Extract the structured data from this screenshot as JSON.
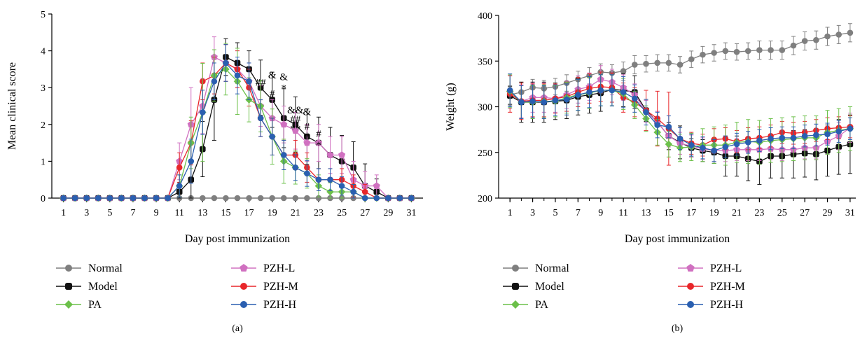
{
  "chart_data": [
    {
      "type": "line",
      "panel_label": "(a)",
      "xlabel": "Day post immunization",
      "ylabel": "Mean clinical score",
      "xlim": [
        0,
        32
      ],
      "ylim": [
        0,
        5
      ],
      "xticks": [
        "1",
        "3",
        "5",
        "7",
        "9",
        "11",
        "13",
        "15",
        "17",
        "19",
        "21",
        "23",
        "25",
        "27",
        "29",
        "31"
      ],
      "yticks": [
        "0",
        "1",
        "2",
        "3",
        "4",
        "5"
      ],
      "error_bars": true,
      "legend_position": "bottom",
      "x": [
        1,
        2,
        3,
        4,
        5,
        6,
        7,
        8,
        9,
        10,
        11,
        12,
        13,
        14,
        15,
        16,
        17,
        18,
        19,
        20,
        21,
        22,
        23,
        24,
        25,
        26,
        27,
        28,
        29,
        30,
        31
      ],
      "series": [
        {
          "name": "Normal",
          "color": "#7f7f7f",
          "marker": "circle",
          "values": [
            0,
            0,
            0,
            0,
            0,
            0,
            0,
            0,
            0,
            0,
            0,
            0,
            0,
            0,
            0,
            0,
            0,
            0,
            0,
            0,
            0,
            0,
            0,
            0,
            0,
            0,
            0,
            0,
            0,
            0,
            0
          ],
          "errors": [
            0,
            0,
            0,
            0,
            0,
            0,
            0,
            0,
            0,
            0,
            0,
            0,
            0,
            0,
            0,
            0,
            0,
            0,
            0,
            0,
            0,
            0,
            0,
            0,
            0,
            0,
            0,
            0,
            0,
            0,
            0
          ]
        },
        {
          "name": "Model",
          "color": "#111111",
          "marker": "square",
          "values": [
            0,
            0,
            0,
            0,
            0,
            0,
            0,
            0,
            0,
            0,
            0.17,
            0.5,
            1.33,
            2.67,
            3.83,
            3.67,
            3.5,
            3,
            2.67,
            2.17,
            2,
            1.67,
            1.5,
            1.17,
            1,
            0.83,
            0.33,
            0.17,
            0,
            0,
            0
          ],
          "errors": [
            0,
            0,
            0,
            0,
            0,
            0,
            0,
            0,
            0,
            0,
            0.25,
            0.5,
            0.75,
            1.1,
            0.5,
            0.55,
            0.5,
            0.75,
            0.75,
            0.8,
            0.75,
            0.75,
            0.7,
            0.75,
            0.7,
            0.7,
            0.6,
            0.35,
            0,
            0,
            0
          ]
        },
        {
          "name": "PZH-L",
          "color": "#d070c0",
          "marker": "pentagon",
          "values": [
            0,
            0,
            0,
            0,
            0,
            0,
            0,
            0,
            0,
            0,
            1,
            2,
            2.5,
            3.83,
            3.67,
            3.5,
            3.17,
            2.5,
            2.17,
            2,
            1.83,
            1.5,
            1.5,
            1.17,
            1.17,
            0.5,
            0.33,
            0.33,
            0,
            0,
            0
          ],
          "errors": [
            0,
            0,
            0,
            0,
            0,
            0,
            0,
            0,
            0,
            0,
            0.5,
            1,
            0.75,
            0.55,
            0.5,
            0.5,
            0.5,
            0.55,
            0.5,
            0.5,
            0.5,
            0.5,
            0.5,
            0.5,
            0.5,
            0.5,
            0.4,
            0.3,
            0,
            0,
            0
          ]
        },
        {
          "name": "PZH-M",
          "color": "#e8262a",
          "marker": "circle",
          "values": [
            0,
            0,
            0,
            0,
            0,
            0,
            0,
            0,
            0,
            0,
            0.83,
            1.5,
            3.17,
            3.33,
            3.67,
            3.5,
            3,
            2.17,
            1.67,
            1.17,
            1.17,
            0.83,
            0.5,
            0.5,
            0.5,
            0.33,
            0.17,
            0,
            0,
            0,
            0
          ],
          "errors": [
            0,
            0,
            0,
            0,
            0,
            0,
            0,
            0,
            0,
            0,
            0.4,
            0.6,
            0.5,
            0.5,
            0.5,
            0.5,
            0.5,
            0.5,
            0.5,
            0.4,
            0.4,
            0.4,
            0.3,
            0.3,
            0.3,
            0.3,
            0.2,
            0,
            0,
            0,
            0
          ]
        },
        {
          "name": "PA",
          "color": "#6cc04a",
          "marker": "diamond",
          "values": [
            0,
            0,
            0,
            0,
            0,
            0,
            0,
            0,
            0,
            0,
            0.33,
            1.5,
            2.33,
            3.33,
            3.5,
            3.17,
            2.67,
            2.5,
            1.67,
            1,
            0.83,
            0.67,
            0.33,
            0.17,
            0.17,
            0.17,
            0,
            0,
            0,
            0,
            0
          ],
          "errors": [
            0,
            0,
            0,
            0,
            0,
            0,
            0,
            0,
            0,
            0,
            0.3,
            0.7,
            1.33,
            0.7,
            0.7,
            0.9,
            0.6,
            0.7,
            0.75,
            0.6,
            0.45,
            0.4,
            0.3,
            0.25,
            0.2,
            0.2,
            0,
            0,
            0,
            0,
            0
          ]
        },
        {
          "name": "PZH-H",
          "color": "#2a5fb0",
          "marker": "circle",
          "values": [
            0,
            0,
            0,
            0,
            0,
            0,
            0,
            0,
            0,
            0,
            0.33,
            1,
            2.33,
            3.17,
            3.67,
            3.33,
            3.17,
            2.17,
            1.67,
            1.17,
            0.83,
            0.67,
            0.5,
            0.5,
            0.33,
            0.17,
            0,
            0,
            0,
            0,
            0
          ],
          "errors": [
            0,
            0,
            0,
            0,
            0,
            0,
            0,
            0,
            0,
            0,
            0.3,
            0.6,
            0.6,
            0.5,
            0.5,
            0.5,
            0.5,
            0.5,
            0.5,
            0.4,
            0.35,
            0.35,
            0.3,
            0.3,
            0.25,
            0.2,
            0,
            0,
            0,
            0,
            0
          ]
        }
      ],
      "annotations": [
        {
          "text": "##",
          "x": 18,
          "y": 3.05
        },
        {
          "text": "&",
          "x": 19,
          "y": 3.25
        },
        {
          "text": "#",
          "x": 19,
          "y": 2.75
        },
        {
          "text": "&",
          "x": 20,
          "y": 3.2
        },
        {
          "text": "*",
          "x": 20,
          "y": 2.9
        },
        {
          "text": "&&",
          "x": 21,
          "y": 2.3
        },
        {
          "text": "##",
          "x": 21,
          "y": 2.05
        },
        {
          "text": "**",
          "x": 21,
          "y": 1.8
        },
        {
          "text": "&",
          "x": 22,
          "y": 2.25
        },
        {
          "text": "#",
          "x": 22,
          "y": 1.85
        },
        {
          "text": "*",
          "x": 22,
          "y": 1.6
        },
        {
          "text": "#",
          "x": 23,
          "y": 1.65
        },
        {
          "text": "*",
          "x": 23,
          "y": 1.35
        }
      ]
    },
    {
      "type": "line",
      "panel_label": "(b)",
      "xlabel": "Day post immunization",
      "ylabel": "Weight (g)",
      "xlim": [
        0,
        31.5
      ],
      "ylim": [
        200,
        400
      ],
      "xticks": [
        "1",
        "3",
        "5",
        "7",
        "9",
        "11",
        "13",
        "15",
        "17",
        "19",
        "21",
        "23",
        "25",
        "27",
        "29",
        "31"
      ],
      "yticks": [
        "200",
        "250",
        "300",
        "350",
        "400"
      ],
      "error_bars": true,
      "legend_position": "bottom",
      "x": [
        1,
        2,
        3,
        4,
        5,
        6,
        7,
        8,
        9,
        10,
        11,
        12,
        13,
        14,
        15,
        16,
        17,
        18,
        19,
        20,
        21,
        22,
        23,
        24,
        25,
        26,
        27,
        28,
        29,
        30,
        31
      ],
      "series": [
        {
          "name": "Normal",
          "color": "#7f7f7f",
          "marker": "circle",
          "values": [
            313,
            316,
            321,
            320,
            322,
            326,
            330,
            334,
            338,
            337,
            339,
            346,
            347,
            348,
            348,
            346,
            352,
            357,
            359,
            361,
            360,
            361,
            362,
            362,
            362,
            367,
            372,
            373,
            377,
            379,
            381
          ],
          "errors": [
            10,
            10,
            9,
            9,
            9,
            9,
            9,
            9,
            9,
            9,
            10,
            10,
            9,
            9,
            9,
            9,
            9,
            9,
            9,
            9,
            9,
            9,
            10,
            10,
            10,
            10,
            10,
            10,
            10,
            10,
            10
          ]
        },
        {
          "name": "Model",
          "color": "#111111",
          "marker": "square",
          "values": [
            312,
            305,
            305,
            305,
            306,
            307,
            311,
            313,
            315,
            319,
            318,
            316,
            296,
            283,
            268,
            261,
            255,
            252,
            250,
            246,
            246,
            243,
            240,
            246,
            246,
            248,
            249,
            248,
            252,
            256,
            259
          ],
          "errors": [
            10,
            22,
            22,
            22,
            20,
            20,
            20,
            20,
            20,
            18,
            18,
            18,
            12,
            12,
            15,
            18,
            10,
            12,
            12,
            22,
            22,
            24,
            25,
            24,
            24,
            26,
            26,
            28,
            28,
            30,
            32
          ]
        },
        {
          "name": "PZH-L",
          "color": "#d070c0",
          "marker": "pentagon",
          "values": [
            316,
            306,
            310,
            310,
            309,
            313,
            319,
            322,
            330,
            327,
            321,
            313,
            295,
            283,
            268,
            260,
            257,
            254,
            252,
            252,
            253,
            253,
            253,
            254,
            253,
            253,
            255,
            255,
            262,
            268,
            277
          ],
          "errors": [
            18,
            18,
            16,
            16,
            15,
            15,
            15,
            15,
            15,
            14,
            14,
            12,
            12,
            12,
            12,
            12,
            12,
            12,
            12,
            12,
            12,
            12,
            12,
            12,
            12,
            12,
            12,
            12,
            14,
            15,
            16
          ]
        },
        {
          "name": "PZH-M",
          "color": "#e8262a",
          "marker": "circle",
          "values": [
            314,
            306,
            307,
            307,
            309,
            311,
            316,
            320,
            322,
            321,
            310,
            305,
            296,
            287,
            276,
            265,
            260,
            258,
            264,
            265,
            262,
            265,
            266,
            268,
            272,
            271,
            272,
            274,
            276,
            277,
            278
          ],
          "errors": [
            20,
            20,
            18,
            18,
            16,
            16,
            16,
            16,
            16,
            16,
            16,
            16,
            22,
            30,
            40,
            12,
            12,
            12,
            12,
            12,
            12,
            12,
            12,
            12,
            12,
            12,
            12,
            12,
            12,
            12,
            12
          ]
        },
        {
          "name": "PA",
          "color": "#6cc04a",
          "marker": "diamond",
          "values": [
            317,
            305,
            305,
            306,
            306,
            310,
            313,
            315,
            318,
            318,
            314,
            302,
            287,
            272,
            259,
            255,
            256,
            258,
            258,
            258,
            261,
            262,
            261,
            263,
            264,
            265,
            266,
            266,
            272,
            274,
            276
          ],
          "errors": [
            18,
            18,
            18,
            18,
            17,
            17,
            17,
            17,
            17,
            17,
            17,
            15,
            14,
            14,
            14,
            15,
            15,
            18,
            20,
            22,
            22,
            24,
            24,
            24,
            24,
            24,
            24,
            24,
            24,
            24,
            24
          ]
        },
        {
          "name": "PZH-H",
          "color": "#2a5fb0",
          "marker": "circle",
          "values": [
            318,
            305,
            306,
            305,
            307,
            308,
            313,
            316,
            318,
            318,
            316,
            309,
            294,
            280,
            278,
            265,
            258,
            255,
            252,
            256,
            259,
            261,
            263,
            265,
            266,
            266,
            268,
            269,
            270,
            273,
            276
          ],
          "errors": [
            18,
            18,
            18,
            18,
            17,
            17,
            17,
            17,
            17,
            17,
            17,
            15,
            14,
            14,
            12,
            12,
            12,
            12,
            12,
            12,
            12,
            12,
            12,
            12,
            12,
            12,
            12,
            12,
            12,
            12,
            12
          ]
        }
      ]
    }
  ]
}
